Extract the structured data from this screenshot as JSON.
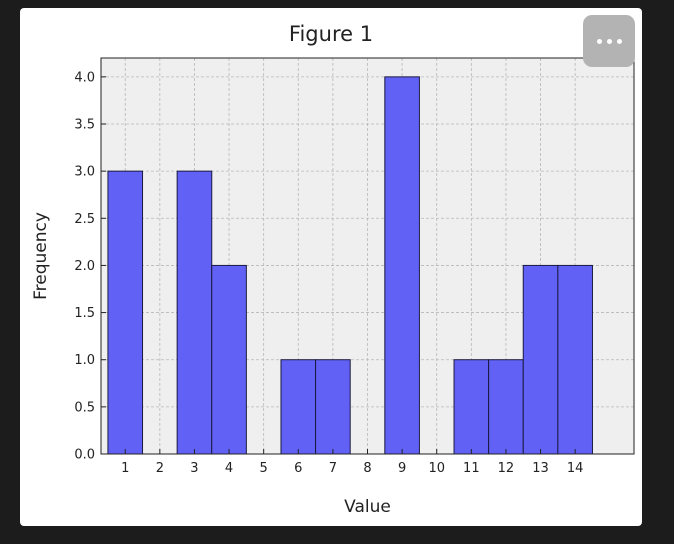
{
  "window": {
    "title": "Figure 1",
    "more_icon": "ellipsis-icon"
  },
  "chart_data": {
    "type": "bar",
    "title": "",
    "xlabel": "Value",
    "ylabel": "Frequency",
    "x": [
      1,
      3,
      4,
      6,
      7,
      9,
      11,
      12,
      13,
      14
    ],
    "values": [
      3,
      3,
      2,
      1,
      1,
      4,
      1,
      1,
      2,
      2
    ],
    "bin_width": 1,
    "xlim": [
      0.3,
      15.7
    ],
    "ylim": [
      0,
      4.2
    ],
    "xticks": [
      1,
      2,
      3,
      4,
      5,
      6,
      7,
      8,
      9,
      10,
      11,
      12,
      13,
      14
    ],
    "yticks": [
      0.0,
      0.5,
      1.0,
      1.5,
      2.0,
      2.5,
      3.0,
      3.5,
      4.0
    ],
    "grid": true,
    "bar_color": "#6161f6",
    "bar_edge_color": "#1a1a40",
    "plot_background": "#efefef"
  }
}
